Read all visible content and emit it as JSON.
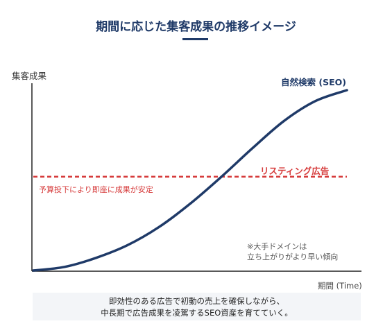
{
  "chart_data": {
    "type": "line",
    "title": "期間に応じた集客成果の推移イメージ",
    "xlabel": "期間 (Time)",
    "ylabel": "集客成果",
    "series": [
      {
        "name": "自然検索 (SEO)",
        "color": "#1f3a68",
        "style": "solid",
        "x": [
          0,
          0.1,
          0.2,
          0.3,
          0.4,
          0.5,
          0.6,
          0.7,
          0.8,
          0.9,
          1.0
        ],
        "values": [
          0,
          0.02,
          0.07,
          0.14,
          0.24,
          0.37,
          0.52,
          0.68,
          0.83,
          0.94,
          1.0
        ]
      },
      {
        "name": "リスティング広告",
        "color": "#d63a3a",
        "style": "dashed",
        "x": [
          0,
          1.0
        ],
        "values": [
          0.52,
          0.52
        ]
      }
    ],
    "annotations": [
      "予算投下により即座に成果が安定",
      "※大手ドメインは",
      "立ち上がりがより早い傾向"
    ],
    "grid": false
  },
  "footer": {
    "line1": "即効性のある広告で初動の売上を確保しながら、",
    "line2": "中長期で広告成果を凌駕するSEO資産を育てていく。"
  }
}
